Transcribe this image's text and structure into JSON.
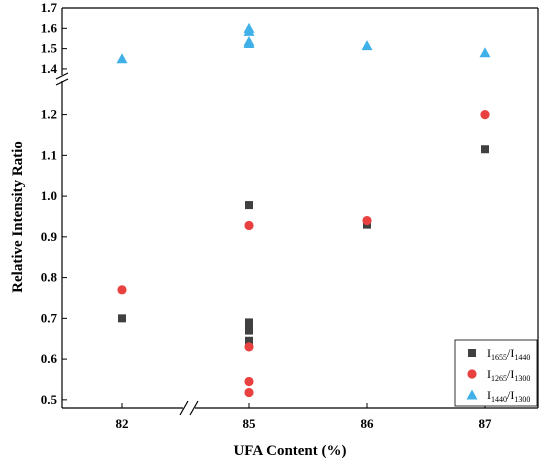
{
  "chart_data": {
    "type": "scatter",
    "title": "",
    "xlabel": "UFA Content (%)",
    "ylabel": "Relative Intensity Ratio",
    "x_categories": [
      "82",
      "85",
      "86",
      "87"
    ],
    "x_axis_break": "between 82 and 85",
    "y_axis_break": "between 1.2 and 1.4",
    "y_lower_range": [
      0.48,
      1.28
    ],
    "y_upper_range": [
      1.38,
      1.7
    ],
    "y_ticks_lower": [
      "0.5",
      "0.6",
      "0.7",
      "0.8",
      "0.9",
      "1.0",
      "1.1",
      "1.2"
    ],
    "y_ticks_upper": [
      "1.4",
      "1.5",
      "1.6",
      "1.7"
    ],
    "legend_position": "bottom-right",
    "series": [
      {
        "name_main": "I",
        "name_sub1": "1655",
        "name_slash": "/I",
        "name_sub2": "1440",
        "marker": "square",
        "color": "#404040",
        "points": [
          {
            "x": "82",
            "y": 0.7
          },
          {
            "x": "85",
            "y": 0.978
          },
          {
            "x": "85",
            "y": 0.69
          },
          {
            "x": "85",
            "y": 0.68
          },
          {
            "x": "85",
            "y": 0.67
          },
          {
            "x": "85",
            "y": 0.645
          },
          {
            "x": "86",
            "y": 0.93
          },
          {
            "x": "87",
            "y": 1.115
          }
        ]
      },
      {
        "name_main": "I",
        "name_sub1": "1265",
        "name_slash": "/I",
        "name_sub2": "1300",
        "marker": "circle",
        "color": "#e8413f",
        "points": [
          {
            "x": "82",
            "y": 0.77
          },
          {
            "x": "85",
            "y": 0.928
          },
          {
            "x": "85",
            "y": 0.63
          },
          {
            "x": "85",
            "y": 0.545
          },
          {
            "x": "85",
            "y": 0.518
          },
          {
            "x": "86",
            "y": 0.94
          },
          {
            "x": "87",
            "y": 1.2
          }
        ]
      },
      {
        "name_main": "I",
        "name_sub1": "1440",
        "name_slash": "/I",
        "name_sub2": "1300",
        "marker": "triangle",
        "color": "#3fb0e8",
        "points": [
          {
            "x": "82",
            "y": 1.45
          },
          {
            "x": "85",
            "y": 1.6
          },
          {
            "x": "85",
            "y": 1.585
          },
          {
            "x": "85",
            "y": 1.535
          },
          {
            "x": "85",
            "y": 1.525
          },
          {
            "x": "86",
            "y": 1.515
          },
          {
            "x": "87",
            "y": 1.48
          }
        ]
      }
    ]
  }
}
